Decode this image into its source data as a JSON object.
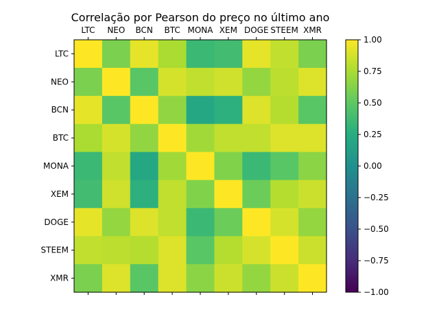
{
  "chart_data": {
    "type": "heatmap",
    "title": "Correlação por Pearson do preço no último ano",
    "xlabel": "",
    "ylabel": "",
    "labels": [
      "LTC",
      "NEO",
      "BCN",
      "BTC",
      "MONA",
      "XEM",
      "DOGE",
      "STEEM",
      "XMR"
    ],
    "matrix": [
      [
        1.0,
        0.6,
        0.93,
        0.75,
        0.35,
        0.38,
        0.93,
        0.82,
        0.6
      ],
      [
        0.6,
        1.0,
        0.48,
        0.88,
        0.82,
        0.86,
        0.68,
        0.8,
        0.9
      ],
      [
        0.93,
        0.48,
        1.0,
        0.67,
        0.2,
        0.28,
        0.9,
        0.78,
        0.48
      ],
      [
        0.75,
        0.88,
        0.67,
        1.0,
        0.72,
        0.82,
        0.82,
        0.9,
        0.9
      ],
      [
        0.35,
        0.82,
        0.2,
        0.72,
        1.0,
        0.62,
        0.35,
        0.48,
        0.65
      ],
      [
        0.38,
        0.86,
        0.28,
        0.82,
        0.62,
        1.0,
        0.55,
        0.78,
        0.85
      ],
      [
        0.93,
        0.68,
        0.9,
        0.82,
        0.35,
        0.55,
        1.0,
        0.88,
        0.68
      ],
      [
        0.82,
        0.8,
        0.78,
        0.9,
        0.48,
        0.78,
        0.88,
        1.0,
        0.85
      ],
      [
        0.6,
        0.9,
        0.48,
        0.9,
        0.65,
        0.85,
        0.68,
        0.85,
        1.0
      ]
    ],
    "colorbar": {
      "min": -1.0,
      "max": 1.0,
      "ticks": [
        1.0,
        0.75,
        0.5,
        0.25,
        0.0,
        -0.25,
        -0.5,
        -0.75,
        -1.0
      ],
      "tick_labels": [
        "1.00",
        "0.75",
        "0.50",
        "0.25",
        "0.00",
        "−0.25",
        "−0.50",
        "−0.75",
        "−1.00"
      ],
      "colormap": "viridis"
    },
    "x_ticks_position": "top-and-bottom-marks, labels-top",
    "grid": false
  }
}
